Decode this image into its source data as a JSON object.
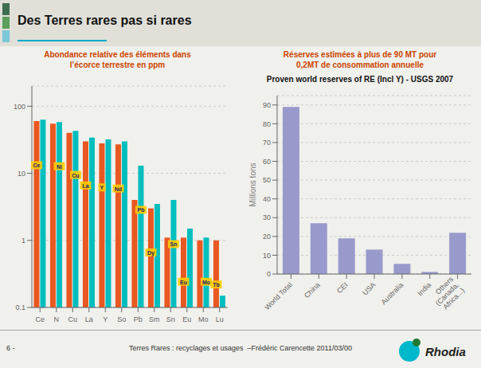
{
  "title": "Des Terres rares pas si rares",
  "annotations": [
    "6 -",
    "Terres Rares : recyclages et usages  –Frédéric Carencette 2011/03/00",
    "Rhodia"
  ],
  "chart_data": [
    {
      "type": "bar",
      "subtitle": "Abondance relative des éléments dans\nl’écorce terrestre en ppm",
      "categories": [
        "Ce",
        "N",
        "Cu",
        "La",
        "Y",
        "So",
        "Pb",
        "Sm",
        "Sn",
        "Eu",
        "Mo",
        "Lu"
      ],
      "series": [
        {
          "color": "#e85820",
          "values": [
            60,
            55,
            40,
            30,
            28,
            27,
            4.0,
            3.0,
            1.1,
            1.1,
            1.0,
            1.0
          ],
          "labels": [
            "Ce",
            null,
            null,
            "La",
            "Y",
            "Nd",
            null,
            "Dy",
            null,
            "Eu",
            null,
            "Tb"
          ]
        },
        {
          "color": "#00bebe",
          "values": [
            63,
            58,
            43,
            34,
            32,
            30,
            13.0,
            3.5,
            4.0,
            1.5,
            1.1,
            0.15
          ],
          "labels": [
            null,
            "Ni",
            "Cu",
            null,
            null,
            null,
            "Pb",
            null,
            "Sn",
            null,
            "Mo",
            null
          ]
        }
      ],
      "log": "y",
      "ylim": [
        0.1,
        200
      ],
      "yticks": [
        0.1,
        1,
        10,
        100
      ],
      "grid": true
    },
    {
      "type": "bar",
      "title": "Proven world reserves of RE (Incl Y) - USGS 2007",
      "subtitle": "Réserves estimées à plus de 90 MT pour\n0,2MT de consommation annuelle",
      "categories": [
        "World Total",
        "China",
        "CEI",
        "USA",
        "Australia",
        "India",
        "Others\n(Canada,\nAfrica...)"
      ],
      "values": [
        89,
        27,
        19,
        13,
        5.4,
        1.1,
        22
      ],
      "color": "#9999cc",
      "ylabel": "Millions tons",
      "ylim": [
        0,
        95
      ],
      "yticks": [
        0,
        10,
        20,
        30,
        40,
        50,
        60,
        70,
        80,
        90
      ],
      "grid": true
    }
  ]
}
